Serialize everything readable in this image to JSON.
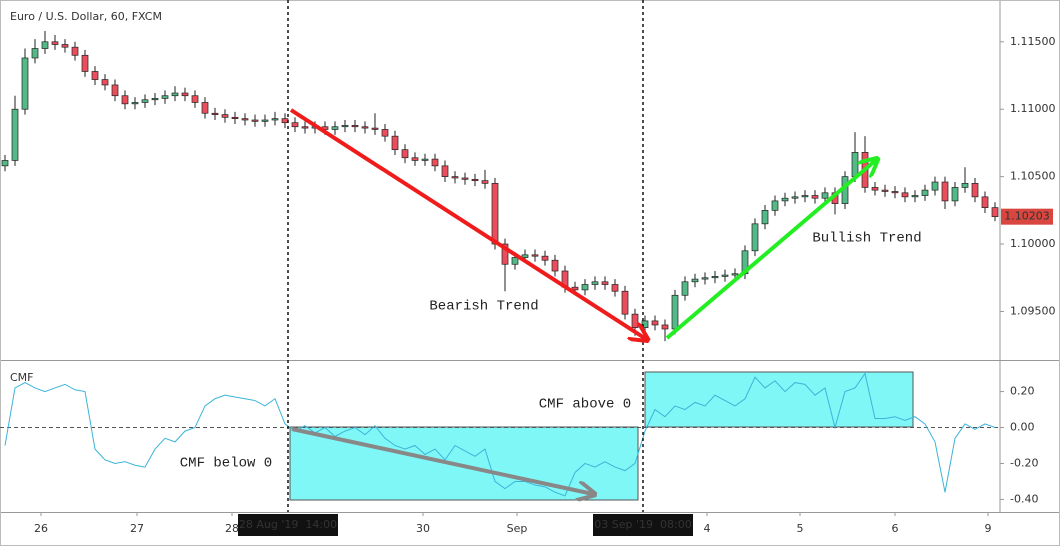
{
  "chart_data": {
    "type": "candlestick",
    "title": "Euro / U.S. Dollar, 60, FXCM",
    "up_color": "#53b987",
    "down_color": "#eb4d5c",
    "xlim": [
      0,
      100
    ],
    "xticks": [
      {
        "value": 4.1,
        "label": "26"
      },
      {
        "value": 13.7,
        "label": "27"
      },
      {
        "value": 23.2,
        "label": "28"
      },
      {
        "value": 42.3,
        "label": "30"
      },
      {
        "value": 51.7,
        "label": "Sep"
      },
      {
        "value": 70.7,
        "label": "4"
      },
      {
        "value": 80,
        "label": "5"
      },
      {
        "value": 89.5,
        "label": "6"
      },
      {
        "value": 98.8,
        "label": "9"
      }
    ],
    "vlines": [
      {
        "value": 28.8,
        "label": "28 Aug '19  14:00"
      },
      {
        "value": 64.3,
        "label": "03 Sep '19  08:00"
      }
    ],
    "ylim": [
      1.0914,
      1.1181
    ],
    "yticks": [
      {
        "value": 1.095,
        "label": "1.09500"
      },
      {
        "value": 1.1,
        "label": "1.10000"
      },
      {
        "value": 1.105,
        "label": "1.10500"
      },
      {
        "value": 1.11,
        "label": "1.11000"
      },
      {
        "value": 1.115,
        "label": "1.11500"
      }
    ],
    "candles": [
      [
        1.1058,
        1.1066,
        1.1054,
        1.1062
      ],
      [
        1.1062,
        1.111,
        1.1058,
        1.11
      ],
      [
        1.11,
        1.1145,
        1.1096,
        1.1138
      ],
      [
        1.1138,
        1.1152,
        1.1134,
        1.1145
      ],
      [
        1.1145,
        1.1158,
        1.1141,
        1.115
      ],
      [
        1.115,
        1.1155,
        1.1144,
        1.1148
      ],
      [
        1.1148,
        1.1152,
        1.1142,
        1.1146
      ],
      [
        1.1146,
        1.115,
        1.1136,
        1.114
      ],
      [
        1.114,
        1.1144,
        1.1124,
        1.1128
      ],
      [
        1.1128,
        1.1132,
        1.1118,
        1.1122
      ],
      [
        1.1122,
        1.1126,
        1.1114,
        1.1118
      ],
      [
        1.1118,
        1.1122,
        1.1106,
        1.111
      ],
      [
        1.111,
        1.1114,
        1.11,
        1.1104
      ],
      [
        1.1104,
        1.1109,
        1.11,
        1.1105
      ],
      [
        1.1105,
        1.1111,
        1.1101,
        1.1107
      ],
      [
        1.1107,
        1.1112,
        1.1103,
        1.1108
      ],
      [
        1.1108,
        1.1114,
        1.1104,
        1.111
      ],
      [
        1.111,
        1.1117,
        1.1106,
        1.1112
      ],
      [
        1.1112,
        1.1116,
        1.1106,
        1.111
      ],
      [
        1.111,
        1.1114,
        1.1101,
        1.1105
      ],
      [
        1.1105,
        1.1109,
        1.1093,
        1.1097
      ],
      [
        1.1097,
        1.1101,
        1.1092,
        1.1096
      ],
      [
        1.1096,
        1.11,
        1.109,
        1.1094
      ],
      [
        1.1094,
        1.1098,
        1.1089,
        1.1093
      ],
      [
        1.1093,
        1.1097,
        1.1088,
        1.1092
      ],
      [
        1.1092,
        1.1096,
        1.1087,
        1.1091
      ],
      [
        1.1091,
        1.1096,
        1.1087,
        1.1092
      ],
      [
        1.1092,
        1.1098,
        1.1088,
        1.1093
      ],
      [
        1.1093,
        1.1097,
        1.1086,
        1.109
      ],
      [
        1.109,
        1.1094,
        1.1083,
        1.1087
      ],
      [
        1.1087,
        1.1091,
        1.1082,
        1.1086
      ],
      [
        1.1086,
        1.1091,
        1.1082,
        1.1087
      ],
      [
        1.1087,
        1.1091,
        1.1081,
        1.1085
      ],
      [
        1.1085,
        1.1091,
        1.1081,
        1.1087
      ],
      [
        1.1087,
        1.1092,
        1.1083,
        1.1088
      ],
      [
        1.1088,
        1.1092,
        1.1083,
        1.1087
      ],
      [
        1.1087,
        1.1091,
        1.1082,
        1.1086
      ],
      [
        1.1086,
        1.1097,
        1.1081,
        1.1085
      ],
      [
        1.1085,
        1.1089,
        1.1076,
        1.108
      ],
      [
        1.108,
        1.1084,
        1.1066,
        1.107
      ],
      [
        1.107,
        1.1074,
        1.106,
        1.1064
      ],
      [
        1.1064,
        1.1068,
        1.1058,
        1.1062
      ],
      [
        1.1062,
        1.1067,
        1.1058,
        1.1063
      ],
      [
        1.1063,
        1.1067,
        1.1054,
        1.1058
      ],
      [
        1.1058,
        1.1062,
        1.1046,
        1.105
      ],
      [
        1.105,
        1.1054,
        1.1045,
        1.1049
      ],
      [
        1.1049,
        1.1053,
        1.1044,
        1.1048
      ],
      [
        1.1048,
        1.1052,
        1.1043,
        1.1047
      ],
      [
        1.1047,
        1.1055,
        1.1041,
        1.1045
      ],
      [
        1.1045,
        1.1049,
        1.0996,
        1.1
      ],
      [
        1.1,
        1.1004,
        1.0965,
        1.0985
      ],
      [
        1.0985,
        1.0994,
        1.0981,
        1.099
      ],
      [
        1.099,
        1.0996,
        1.0986,
        1.0992
      ],
      [
        1.0992,
        1.0996,
        1.0987,
        1.0991
      ],
      [
        1.0991,
        1.0995,
        1.0984,
        1.0988
      ],
      [
        1.0988,
        1.0992,
        1.0976,
        1.098
      ],
      [
        1.098,
        1.0984,
        1.0964,
        1.0968
      ],
      [
        1.0968,
        1.0972,
        1.0962,
        1.0966
      ],
      [
        1.0966,
        1.0974,
        1.0962,
        1.097
      ],
      [
        1.097,
        1.0976,
        1.0966,
        1.0972
      ],
      [
        1.0972,
        1.0976,
        1.0966,
        1.097
      ],
      [
        1.097,
        1.0974,
        1.0961,
        1.0965
      ],
      [
        1.0965,
        1.0969,
        1.0944,
        1.0948
      ],
      [
        1.0948,
        1.0952,
        1.0932,
        1.0938
      ],
      [
        1.0938,
        1.0947,
        1.0934,
        1.0943
      ],
      [
        1.0943,
        1.0947,
        1.0936,
        1.094
      ],
      [
        1.094,
        1.0944,
        1.0928,
        1.0937
      ],
      [
        1.0937,
        1.0966,
        1.0933,
        1.0962
      ],
      [
        1.0962,
        1.0976,
        1.0958,
        1.0972
      ],
      [
        1.0972,
        1.0978,
        1.0968,
        1.0974
      ],
      [
        1.0974,
        1.0979,
        1.097,
        1.0975
      ],
      [
        1.0975,
        1.098,
        1.0971,
        1.0976
      ],
      [
        1.0976,
        1.0981,
        1.0972,
        1.0977
      ],
      [
        1.0977,
        1.0982,
        1.0973,
        1.0978
      ],
      [
        1.0978,
        1.0999,
        1.0974,
        1.0995
      ],
      [
        1.0995,
        1.1019,
        1.0991,
        1.1015
      ],
      [
        1.1015,
        1.1029,
        1.1011,
        1.1025
      ],
      [
        1.1025,
        1.1036,
        1.1021,
        1.1032
      ],
      [
        1.1032,
        1.1038,
        1.1028,
        1.1034
      ],
      [
        1.1034,
        1.1039,
        1.103,
        1.1035
      ],
      [
        1.1035,
        1.104,
        1.1031,
        1.1036
      ],
      [
        1.1036,
        1.104,
        1.103,
        1.1034
      ],
      [
        1.1034,
        1.1042,
        1.103,
        1.1038
      ],
      [
        1.1038,
        1.1042,
        1.1022,
        1.103
      ],
      [
        1.103,
        1.1054,
        1.1026,
        1.105
      ],
      [
        1.105,
        1.1083,
        1.1046,
        1.1068
      ],
      [
        1.1068,
        1.108,
        1.1038,
        1.1042
      ],
      [
        1.1042,
        1.1046,
        1.1036,
        1.104
      ],
      [
        1.104,
        1.1044,
        1.1035,
        1.1039
      ],
      [
        1.1039,
        1.1043,
        1.1034,
        1.1038
      ],
      [
        1.1038,
        1.1042,
        1.1031,
        1.1035
      ],
      [
        1.1035,
        1.104,
        1.1031,
        1.1036
      ],
      [
        1.1036,
        1.1044,
        1.1032,
        1.104
      ],
      [
        1.104,
        1.105,
        1.1036,
        1.1046
      ],
      [
        1.1046,
        1.105,
        1.1026,
        1.1032
      ],
      [
        1.1032,
        1.1046,
        1.1028,
        1.1042
      ],
      [
        1.1042,
        1.1057,
        1.1038,
        1.1045
      ],
      [
        1.1045,
        1.1049,
        1.1031,
        1.1035
      ],
      [
        1.1035,
        1.1039,
        1.1023,
        1.1027
      ],
      [
        1.1027,
        1.1031,
        1.1017,
        1.10203
      ]
    ],
    "cmf": {
      "name": "CMF",
      "color": "#3bb4d8",
      "axis": "y2",
      "values": [
        -0.1,
        0.22,
        0.25,
        0.22,
        0.2,
        0.22,
        0.24,
        0.21,
        0.2,
        -0.12,
        -0.18,
        -0.2,
        -0.19,
        -0.21,
        -0.22,
        -0.12,
        -0.06,
        -0.08,
        -0.02,
        0,
        0.12,
        0.16,
        0.18,
        0.17,
        0.16,
        0.15,
        0.12,
        0.16,
        0.02,
        -0.02,
        0.01,
        -0.03,
        0,
        -0.05,
        -0.02,
        0,
        -0.04,
        0.01,
        -0.06,
        -0.1,
        -0.12,
        -0.1,
        -0.15,
        -0.12,
        -0.18,
        -0.1,
        -0.13,
        -0.16,
        -0.12,
        -0.3,
        -0.34,
        -0.3,
        -0.3,
        -0.32,
        -0.33,
        -0.36,
        -0.38,
        -0.25,
        -0.2,
        -0.22,
        -0.19,
        -0.22,
        -0.24,
        -0.2,
        -0.02,
        0.1,
        0.06,
        0.12,
        0.1,
        0.14,
        0.12,
        0.18,
        0.15,
        0.12,
        0.16,
        0.28,
        0.22,
        0.26,
        0.2,
        0.25,
        0.24,
        0.18,
        0.22,
        0,
        0.2,
        0.22,
        0.3,
        0.05,
        0.05,
        0.06,
        0.04,
        0.06,
        0.02,
        -0.08,
        -0.36,
        -0.06,
        0.02,
        -0.01,
        0.02,
        0
      ]
    },
    "y2lim": [
      -0.47,
      0.37
    ],
    "y2ticks": [
      {
        "value": -0.4,
        "label": "-0.40"
      },
      {
        "value": -0.2,
        "label": "-0.20"
      },
      {
        "value": 0,
        "label": "0.00"
      },
      {
        "value": 0.2,
        "label": "0.20"
      }
    ],
    "annotations": {
      "bearish": "Bearish Trend",
      "bullish": "Bullish Trend",
      "cmf_above": "CMF above 0",
      "cmf_below": "CMF below 0"
    }
  }
}
